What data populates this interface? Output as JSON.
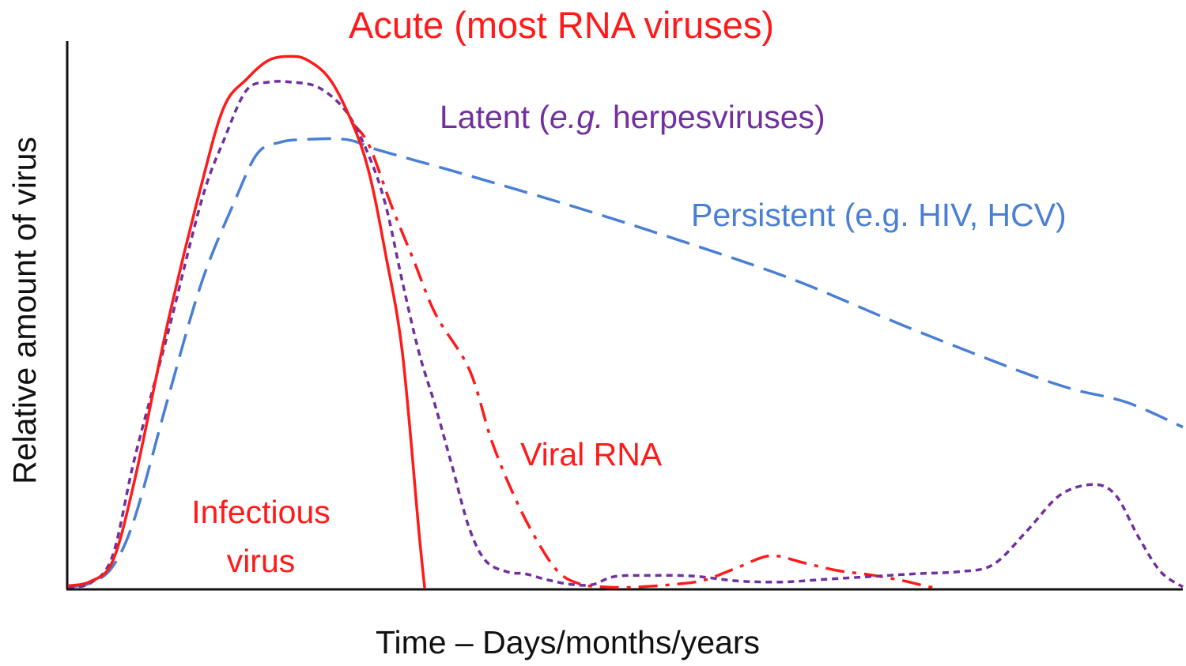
{
  "chart_data": {
    "type": "line",
    "title": "Acute (most RNA viruses)",
    "xlabel": "Time – Days/months/years",
    "ylabel": "Relative amount of virus",
    "xlim": [
      0,
      100
    ],
    "ylim": [
      0,
      100
    ],
    "grid": false,
    "axis_ticks": false,
    "colors": {
      "acute": "#ff1a1a",
      "latent": "#7030a0",
      "persistent": "#4a7fd4"
    },
    "series": [
      {
        "name": "Infectious virus",
        "color": "#ff1a1a",
        "style": "solid",
        "points": [
          [
            0,
            0.5
          ],
          [
            2,
            1.3
          ],
          [
            4,
            5
          ],
          [
            6,
            20
          ],
          [
            9,
            49
          ],
          [
            12,
            74
          ],
          [
            14,
            88
          ],
          [
            16,
            93
          ],
          [
            18,
            96.5
          ],
          [
            20,
            97.2
          ],
          [
            21.5,
            96.5
          ],
          [
            23.5,
            93
          ],
          [
            25.5,
            85
          ],
          [
            27,
            76
          ],
          [
            28.5,
            61
          ],
          [
            30,
            43
          ],
          [
            31.5,
            10
          ],
          [
            32,
            0
          ]
        ]
      },
      {
        "name": "Viral RNA",
        "color": "#ff1a1a",
        "style": "dashdot",
        "points": [
          [
            25.5,
            85
          ],
          [
            27,
            81
          ],
          [
            29,
            70
          ],
          [
            31,
            60
          ],
          [
            33,
            50
          ],
          [
            36,
            40
          ],
          [
            38,
            27
          ],
          [
            40,
            17
          ],
          [
            42,
            9
          ],
          [
            44,
            3
          ],
          [
            46,
            0.8
          ],
          [
            48,
            0.3
          ],
          [
            50,
            0.2
          ],
          [
            52,
            0.4
          ],
          [
            54,
            0.7
          ],
          [
            57,
            1.5
          ],
          [
            60,
            3.8
          ],
          [
            63,
            6
          ],
          [
            66,
            4.7
          ],
          [
            69,
            3.3
          ],
          [
            72,
            2.5
          ],
          [
            75,
            1.4
          ],
          [
            77,
            0.4
          ],
          [
            78,
            0.2
          ]
        ]
      },
      {
        "name": "Latent (e.g. herpesviruses)",
        "color": "#7030a0",
        "style": "dotted",
        "points": [
          [
            0,
            0.3
          ],
          [
            2,
            1
          ],
          [
            4,
            6
          ],
          [
            6,
            24
          ],
          [
            9,
            47
          ],
          [
            12,
            71
          ],
          [
            14,
            82
          ],
          [
            16,
            91
          ],
          [
            18,
            92.5
          ],
          [
            20,
            92.5
          ],
          [
            22.5,
            91.5
          ],
          [
            25,
            87
          ],
          [
            27,
            79
          ],
          [
            28.5,
            70
          ],
          [
            30,
            56
          ],
          [
            31.5,
            43
          ],
          [
            33,
            33
          ],
          [
            34.5,
            22
          ],
          [
            36,
            11
          ],
          [
            37.5,
            5
          ],
          [
            39.5,
            3
          ],
          [
            41,
            2.7
          ],
          [
            43,
            1.6
          ],
          [
            45,
            0.8
          ],
          [
            47,
            0.7
          ],
          [
            49,
            2.2
          ],
          [
            52,
            2.4
          ],
          [
            56,
            2.3
          ],
          [
            60,
            1.4
          ],
          [
            64,
            1.2
          ],
          [
            68,
            1.7
          ],
          [
            72,
            2.2
          ],
          [
            76,
            2.7
          ],
          [
            80,
            3.1
          ],
          [
            83,
            4.4
          ],
          [
            86,
            10.5
          ],
          [
            89,
            17.1
          ],
          [
            92,
            19
          ],
          [
            94,
            17
          ],
          [
            96,
            9.5
          ],
          [
            98,
            3.1
          ],
          [
            100,
            0.3
          ]
        ]
      },
      {
        "name": "Persistent (e.g. HIV, HCV)",
        "color": "#4a7fd4",
        "style": "dashed",
        "points": [
          [
            0,
            0.3
          ],
          [
            2,
            1
          ],
          [
            4,
            4
          ],
          [
            6,
            13
          ],
          [
            9,
            35
          ],
          [
            12,
            56
          ],
          [
            15,
            71
          ],
          [
            17,
            79.5
          ],
          [
            19,
            81.5
          ],
          [
            21,
            82
          ],
          [
            25,
            82
          ],
          [
            28,
            80
          ],
          [
            35,
            76
          ],
          [
            45,
            70
          ],
          [
            55,
            63.5
          ],
          [
            65,
            56.5
          ],
          [
            75,
            48
          ],
          [
            85,
            40
          ],
          [
            90,
            36.5
          ],
          [
            95,
            34
          ],
          [
            100,
            29.5
          ]
        ]
      }
    ],
    "annotations": [
      {
        "text": "Latent (",
        "italic": "e.g.",
        "text_after": " herpesviruses)",
        "color": "#7030a0"
      },
      {
        "text": "Persistent (e.g. HIV, HCV)",
        "color": "#4a7fd4"
      },
      {
        "text": "Viral RNA",
        "color": "#ff1a1a"
      },
      {
        "text": "Infectious",
        "text2": "virus",
        "color": "#ff1a1a"
      }
    ]
  }
}
